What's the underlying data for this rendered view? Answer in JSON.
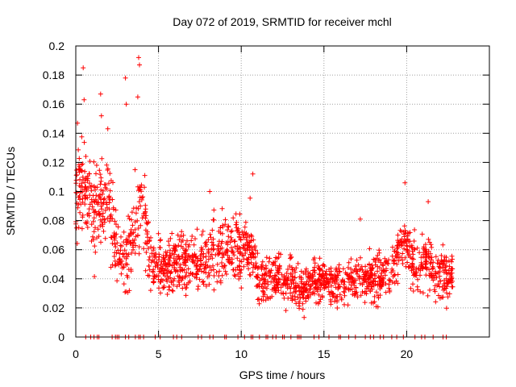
{
  "chart_data": {
    "type": "scatter",
    "title": "Day 072 of 2019, SRMTID for receiver mchl",
    "xlabel": "GPS time / hours",
    "ylabel": "SRMTID / TECUs",
    "xlim": [
      0,
      25
    ],
    "ylim": [
      0,
      0.2
    ],
    "x_ticks": [
      0,
      5,
      10,
      15,
      20
    ],
    "x_tick_labels": [
      "0",
      "5",
      "10",
      "15",
      "20"
    ],
    "y_ticks": [
      0,
      0.02,
      0.04,
      0.06,
      0.08,
      0.1,
      0.12,
      0.14,
      0.16,
      0.18,
      0.2
    ],
    "y_tick_labels": [
      "0",
      "0.02",
      "0.04",
      "0.06",
      "0.08",
      "0.1",
      "0.12",
      "0.14",
      "0.16",
      "0.18",
      "0.2"
    ],
    "grid": true,
    "marker": "plus",
    "series": [
      {
        "name": "SRMTID",
        "color": "#ff0000",
        "trend": {
          "x": [
            0,
            0.5,
            1,
            1.5,
            2,
            2.5,
            3,
            3.5,
            4,
            4.5,
            5,
            6,
            7,
            8,
            9,
            10,
            10.5,
            11,
            12,
            13,
            13.5,
            14,
            15,
            16,
            17,
            18,
            19,
            19.8,
            20.5,
            21,
            21.5,
            22,
            22.5,
            22.8
          ],
          "y": [
            0.095,
            0.1,
            0.085,
            0.09,
            0.1,
            0.055,
            0.05,
            0.07,
            0.1,
            0.055,
            0.045,
            0.052,
            0.05,
            0.055,
            0.06,
            0.06,
            0.065,
            0.04,
            0.04,
            0.038,
            0.03,
            0.035,
            0.04,
            0.035,
            0.04,
            0.04,
            0.042,
            0.07,
            0.045,
            0.05,
            0.045,
            0.045,
            0.04,
            0.05
          ]
        },
        "spread": [
          0.025,
          0.025,
          0.025,
          0.025,
          0.025,
          0.02,
          0.02,
          0.025,
          0.03,
          0.015,
          0.015,
          0.015,
          0.015,
          0.018,
          0.018,
          0.02,
          0.02,
          0.012,
          0.012,
          0.012,
          0.012,
          0.012,
          0.012,
          0.012,
          0.012,
          0.012,
          0.012,
          0.015,
          0.015,
          0.015,
          0.015,
          0.015,
          0.015,
          0.012
        ],
        "n_points": 1800,
        "x_range": [
          0,
          22.8
        ],
        "peaks": [
          {
            "x": 0.45,
            "y": 0.185
          },
          {
            "x": 0.5,
            "y": 0.163
          },
          {
            "x": 0.1,
            "y": 0.147
          },
          {
            "x": 1.5,
            "y": 0.167
          },
          {
            "x": 1.55,
            "y": 0.152
          },
          {
            "x": 3.0,
            "y": 0.178
          },
          {
            "x": 3.05,
            "y": 0.16
          },
          {
            "x": 3.8,
            "y": 0.192
          },
          {
            "x": 3.85,
            "y": 0.187
          },
          {
            "x": 3.75,
            "y": 0.165
          },
          {
            "x": 10.7,
            "y": 0.112
          },
          {
            "x": 19.9,
            "y": 0.106
          },
          {
            "x": 21.3,
            "y": 0.093
          },
          {
            "x": 8.1,
            "y": 0.1
          },
          {
            "x": 17.2,
            "y": 0.081
          }
        ],
        "zero_marks_x": [
          0.6,
          0.9,
          1.1,
          1.3,
          1.4,
          2.2,
          2.4,
          2.5,
          2.6,
          3.0,
          3.2,
          3.6,
          3.8,
          3.9,
          4.1,
          4.8,
          5.1,
          5.9,
          6.1,
          6.4,
          7.4,
          7.6,
          8.1,
          8.3,
          9.0,
          9.1,
          9.8,
          10.2,
          10.6,
          10.7,
          11.1,
          11.5,
          11.6,
          11.9,
          12.1,
          12.5,
          12.6,
          13.0,
          13.4,
          13.5,
          13.6,
          14.4,
          14.7,
          15.3,
          15.9,
          16.0,
          16.5,
          16.9,
          17.5,
          17.8,
          18.0,
          18.4,
          18.6,
          19.1,
          19.4,
          19.8,
          20.5,
          20.9,
          21.1,
          21.6,
          22.2,
          22.4
        ]
      }
    ]
  }
}
